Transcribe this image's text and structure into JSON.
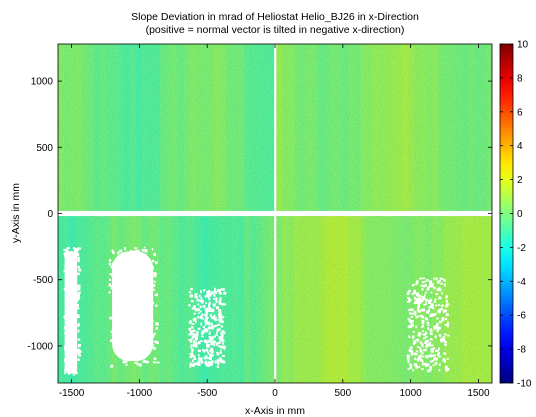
{
  "chart_data": {
    "type": "heatmap",
    "title": "Slope Deviation in mrad of Heliostat Helio_BJ26 in x-Direction",
    "subtitle": "(positive = normal vector is tilted in negative x-direction)",
    "xlabel": "x-Axis in mm",
    "ylabel": "y-Axis in mm",
    "xlim": [
      -1600,
      1600
    ],
    "ylim": [
      -1280,
      1280
    ],
    "x_ticks": [
      -1500,
      -1000,
      -500,
      0,
      500,
      1000,
      1500
    ],
    "y_ticks": [
      -1000,
      -500,
      0,
      500,
      1000
    ],
    "colorbar": {
      "range": [
        -10,
        10
      ],
      "ticks": [
        -10,
        -8,
        -6,
        -4,
        -2,
        0,
        2,
        4,
        6,
        8,
        10
      ],
      "colormap": "jet"
    },
    "grid": false,
    "facets": {
      "top-left": {
        "x": [
          -1600,
          -10
        ],
        "y": [
          20,
          1280
        ],
        "typical_value": -0.3
      },
      "top-right": {
        "x": [
          10,
          1600
        ],
        "y": [
          20,
          1280
        ],
        "typical_value": 0.3
      },
      "bottom-left": {
        "x": [
          -1600,
          -10
        ],
        "y": [
          -1280,
          -20
        ],
        "typical_value": -0.5
      },
      "bottom-right": {
        "x": [
          10,
          1600
        ],
        "y": [
          -1280,
          -20
        ],
        "typical_value": 0.6
      }
    },
    "missing_data_regions": [
      {
        "facet": "bottom-left",
        "x": [
          -1230,
          -870
        ],
        "y": [
          -1150,
          -250
        ]
      },
      {
        "facet": "bottom-left",
        "x": [
          -1560,
          -1450
        ],
        "y": [
          -1250,
          -250
        ]
      },
      {
        "facet": "bottom-left",
        "x": [
          -640,
          -380
        ],
        "y": [
          -1150,
          -560
        ]
      },
      {
        "facet": "bottom-right",
        "x": [
          970,
          1270
        ],
        "y": [
          -1180,
          -480
        ]
      }
    ]
  }
}
